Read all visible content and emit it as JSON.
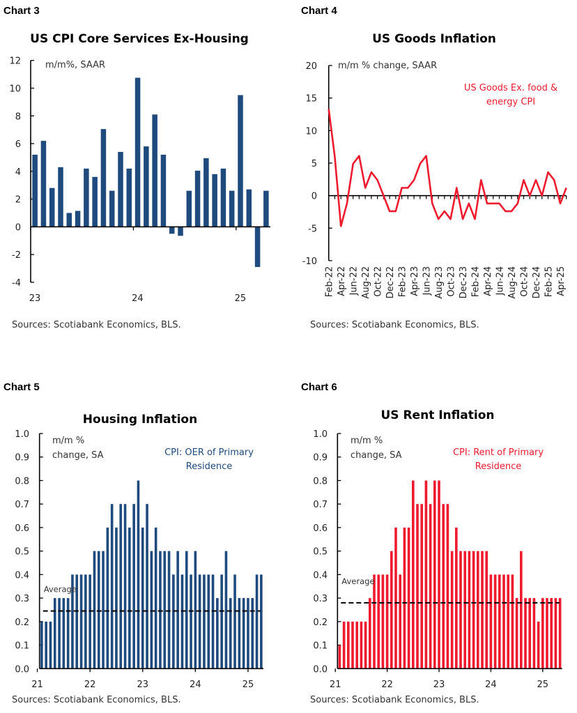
{
  "colors": {
    "blue": "#1f4a7e",
    "red": "#ee1b2f",
    "average_line": "#000000"
  },
  "chart_data": [
    {
      "label": "Chart 3",
      "type": "bar",
      "title": "US CPI Core Services Ex-Housing",
      "unit_note": "m/m%, SAAR",
      "source": "Sources: Scotiabank Economics, BLS.",
      "color": "#1f4a7e",
      "x_start": "2023-01",
      "x_end": "2025-04",
      "values": [
        5.2,
        6.2,
        2.8,
        4.3,
        1.0,
        1.15,
        4.2,
        3.6,
        7.05,
        2.6,
        5.4,
        4.2,
        10.75,
        5.8,
        8.1,
        5.2,
        -0.5,
        -0.65,
        2.6,
        4.05,
        4.95,
        3.8,
        4.2,
        2.6,
        9.5,
        2.7,
        -2.9,
        2.6
      ],
      "ylim": [
        -4,
        12
      ],
      "yticks": [
        "12",
        "10",
        "8",
        "6",
        "4",
        "2",
        "0",
        "-2",
        "-4"
      ],
      "xtick_labels": [
        "23",
        "24",
        "25"
      ],
      "grid": false
    },
    {
      "label": "Chart 4",
      "type": "line",
      "title": "US Goods Inflation",
      "unit_note": "m/m % change, SAAR",
      "legend": [
        "US Goods Ex. food &",
        "energy CPI"
      ],
      "legend_placement": "top-right",
      "source": "Sources: Scotiabank Economics, BLS.",
      "color": "#ee1b2f",
      "x_start": "2022-02",
      "x_end": "2025-05",
      "values": [
        13.3,
        6.0,
        -4.7,
        -1.2,
        4.9,
        6.1,
        1.2,
        3.6,
        2.4,
        0.0,
        -2.4,
        -2.4,
        1.2,
        1.2,
        2.4,
        4.9,
        6.1,
        -1.2,
        -3.6,
        -2.4,
        -3.6,
        1.2,
        -3.6,
        -1.2,
        -3.6,
        2.4,
        -1.2,
        -1.2,
        -1.2,
        -2.4,
        -2.4,
        -1.2,
        2.4,
        0.0,
        2.4,
        0.0,
        3.6,
        2.4,
        -1.2,
        1.2
      ],
      "ylim": [
        -10,
        20
      ],
      "yticks": [
        "20",
        "15",
        "10",
        "5",
        "0",
        "-5",
        "-10"
      ],
      "xtick_labels": [
        "Feb-22",
        "Apr-22",
        "Jun-22",
        "Aug-22",
        "Oct-22",
        "Dec-22",
        "Feb-23",
        "Apr-23",
        "Jun-23",
        "Aug-23",
        "Oct-23",
        "Dec-23",
        "Feb-24",
        "Apr-24",
        "Jun-24",
        "Aug-24",
        "Oct-24",
        "Dec-24",
        "Feb-25",
        "Apr-25"
      ],
      "grid": false
    },
    {
      "label": "Chart 5",
      "type": "bar",
      "title": "Housing Inflation",
      "unit_note": [
        "m/m %",
        "change, SA"
      ],
      "legend": [
        "CPI: OER of Primary",
        "Residence"
      ],
      "legend_placement": "top-right",
      "source": "Sources: Scotiabank Economics, BLS.",
      "color": "#1f4a7e",
      "x_start": "2021-02",
      "x_end": "2025-04",
      "values": [
        0.2,
        0.2,
        0.2,
        0.3,
        0.3,
        0.3,
        0.3,
        0.4,
        0.4,
        0.4,
        0.4,
        0.4,
        0.5,
        0.5,
        0.5,
        0.6,
        0.7,
        0.6,
        0.7,
        0.7,
        0.6,
        0.7,
        0.8,
        0.6,
        0.7,
        0.5,
        0.6,
        0.5,
        0.5,
        0.5,
        0.4,
        0.5,
        0.4,
        0.5,
        0.4,
        0.5,
        0.4,
        0.4,
        0.4,
        0.4,
        0.3,
        0.4,
        0.5,
        0.3,
        0.4,
        0.3,
        0.3,
        0.3,
        0.3,
        0.4,
        0.4
      ],
      "average": 0.245,
      "average_label": "Average",
      "ylim": [
        0,
        1.0
      ],
      "yticks": [
        "1.0",
        "0.9",
        "0.8",
        "0.7",
        "0.6",
        "0.5",
        "0.4",
        "0.3",
        "0.2",
        "0.1",
        "0.0"
      ],
      "xtick_labels": [
        "21",
        "22",
        "23",
        "24",
        "25"
      ],
      "grid": false
    },
    {
      "label": "Chart 6",
      "type": "bar",
      "title": "US Rent Inflation",
      "unit_note": [
        "m/m %",
        "change, SA"
      ],
      "legend": [
        "CPI: Rent of Primary",
        "Residence"
      ],
      "legend_placement": "top-right",
      "source": "Sources: Scotiabank Economics, BLS.",
      "color": "#ee1b2f",
      "x_start": "2021-02",
      "x_end": "2025-05",
      "values": [
        0.1,
        0.2,
        0.2,
        0.2,
        0.2,
        0.2,
        0.2,
        0.3,
        0.4,
        0.4,
        0.4,
        0.4,
        0.5,
        0.6,
        0.4,
        0.6,
        0.6,
        0.8,
        0.7,
        0.7,
        0.8,
        0.7,
        0.8,
        0.8,
        0.7,
        0.7,
        0.5,
        0.6,
        0.5,
        0.5,
        0.5,
        0.5,
        0.5,
        0.5,
        0.5,
        0.4,
        0.4,
        0.4,
        0.4,
        0.4,
        0.4,
        0.3,
        0.5,
        0.3,
        0.3,
        0.3,
        0.2,
        0.3,
        0.3,
        0.3,
        0.3,
        0.3
      ],
      "average": 0.28,
      "average_label": "Average",
      "ylim": [
        0,
        1.0
      ],
      "yticks": [
        "1.0",
        "0.9",
        "0.8",
        "0.7",
        "0.6",
        "0.5",
        "0.4",
        "0.3",
        "0.2",
        "0.1",
        "0.0"
      ],
      "xtick_labels": [
        "21",
        "22",
        "23",
        "24",
        "25"
      ],
      "grid": false
    }
  ]
}
